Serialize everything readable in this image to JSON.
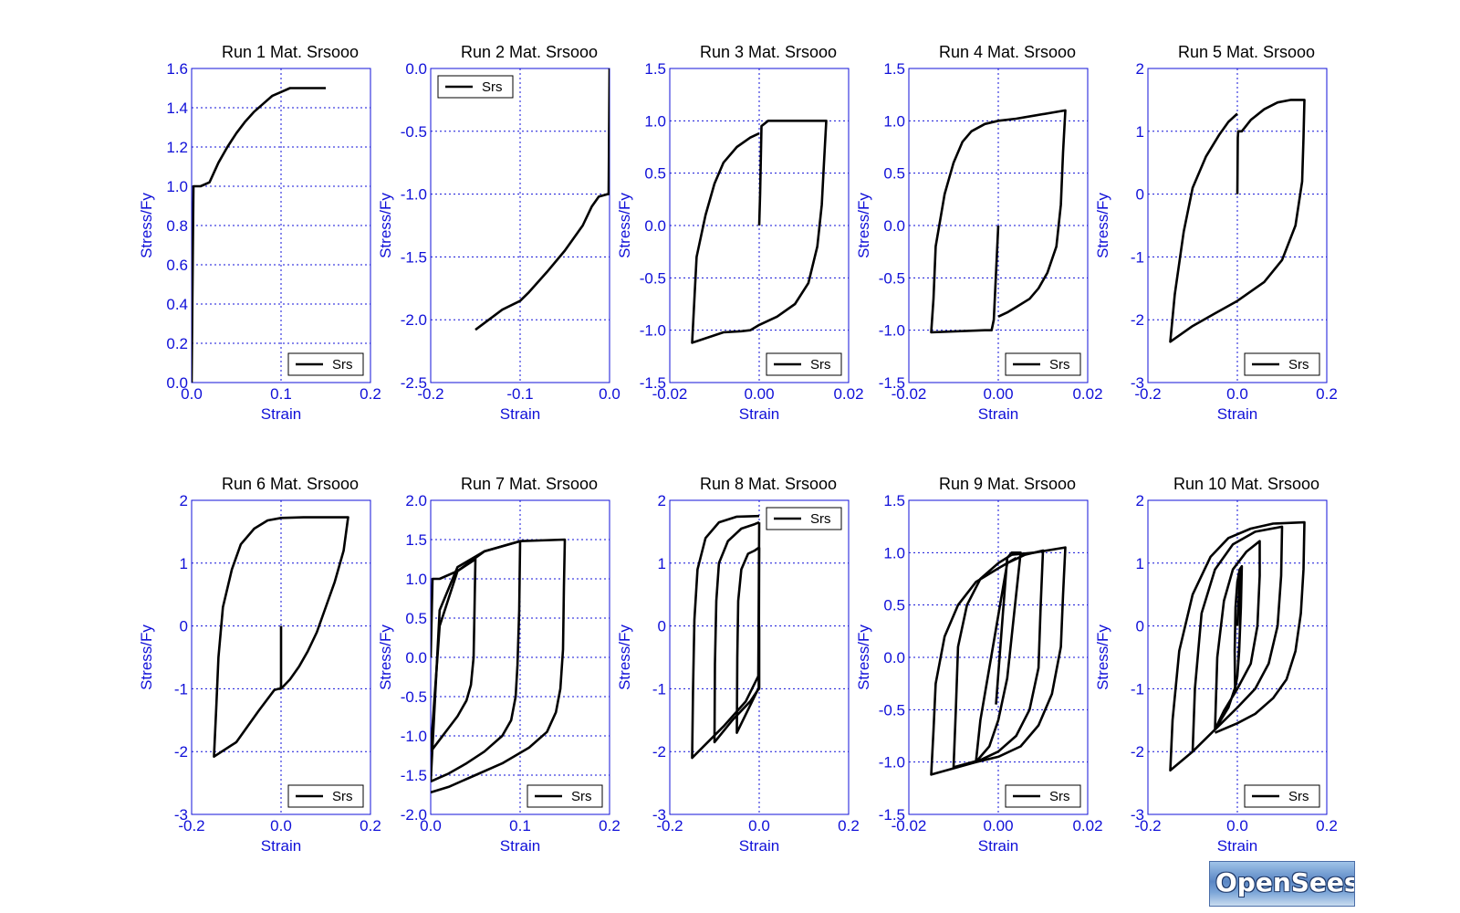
{
  "brand": "OpenSees",
  "colors": {
    "axis": "#1010d8",
    "grid": "#1010d8",
    "curve": "#000000",
    "text": "#000000"
  },
  "chart_data": [
    {
      "type": "line",
      "title": "Run 1   Mat. Srsooo",
      "xlabel": "Strain",
      "ylabel": "Stress/Fy",
      "xlim": [
        0,
        0.2
      ],
      "ylim": [
        0,
        1.6
      ],
      "xticks": [
        "0.0",
        "0.1",
        "0.2"
      ],
      "yticks": [
        "0.0",
        "0.2",
        "0.4",
        "0.6",
        "0.8",
        "1.0",
        "1.2",
        "1.4",
        "1.6"
      ],
      "grid": true,
      "legend": "Srs",
      "legend_position": "bottom-right",
      "x": [
        0,
        0.002,
        0.003,
        0.01,
        0.02,
        0.03,
        0.04,
        0.05,
        0.06,
        0.07,
        0.08,
        0.09,
        0.1,
        0.11,
        0.12,
        0.15
      ],
      "y": [
        0,
        1.0,
        1.0,
        1.0,
        1.02,
        1.12,
        1.2,
        1.27,
        1.33,
        1.38,
        1.42,
        1.46,
        1.48,
        1.5,
        1.5,
        1.5
      ]
    },
    {
      "type": "line",
      "title": "Run 2   Mat. Srsooo",
      "xlabel": "Strain",
      "ylabel": "Stress/Fy",
      "xlim": [
        -0.2,
        0
      ],
      "ylim": [
        -2.5,
        0
      ],
      "xticks": [
        "-0.2",
        "-0.1",
        "0.0"
      ],
      "yticks": [
        "-2.5",
        "-2.0",
        "-1.5",
        "-1.0",
        "-0.5",
        "0.0"
      ],
      "grid": true,
      "legend": "Srs",
      "legend_position": "top-left",
      "x": [
        0,
        -0.001,
        -0.002,
        -0.012,
        -0.02,
        -0.03,
        -0.05,
        -0.07,
        -0.09,
        -0.1,
        -0.12,
        -0.15
      ],
      "y": [
        0,
        -1.0,
        -1.0,
        -1.02,
        -1.1,
        -1.25,
        -1.45,
        -1.62,
        -1.78,
        -1.85,
        -1.92,
        -2.08
      ]
    },
    {
      "type": "line",
      "title": "Run 3   Mat. Srsooo",
      "xlabel": "Strain",
      "ylabel": "Stress/Fy",
      "xlim": [
        -0.02,
        0.02
      ],
      "ylim": [
        -1.5,
        1.5
      ],
      "xticks": [
        "-0.02",
        "0.00",
        "0.02"
      ],
      "yticks": [
        "-1.5",
        "-1.0",
        "-0.5",
        "0.0",
        "0.5",
        "1.0",
        "1.5"
      ],
      "grid": true,
      "legend": "Srs",
      "legend_position": "bottom-right",
      "x": [
        0,
        0.0002,
        0.0005,
        0.002,
        0.004,
        0.01,
        0.015,
        0.0145,
        0.014,
        0.013,
        0.011,
        0.008,
        0.004,
        0,
        -0.002,
        -0.004,
        -0.008,
        -0.015,
        -0.0145,
        -0.014,
        -0.012,
        -0.01,
        -0.008,
        -0.005,
        -0.002,
        0
      ],
      "y": [
        0,
        0.3,
        0.95,
        1.0,
        1.0,
        1.0,
        1.0,
        0.6,
        0.2,
        -0.2,
        -0.55,
        -0.75,
        -0.87,
        -0.95,
        -1.0,
        -1.01,
        -1.02,
        -1.12,
        -0.7,
        -0.3,
        0.1,
        0.4,
        0.6,
        0.75,
        0.84,
        0.88
      ]
    },
    {
      "type": "line",
      "title": "Run 4   Mat. Srsooo",
      "xlabel": "Strain",
      "ylabel": "Stress/Fy",
      "xlim": [
        -0.02,
        0.02
      ],
      "ylim": [
        -1.5,
        1.5
      ],
      "xticks": [
        "-0.02",
        "0.00",
        "0.02"
      ],
      "yticks": [
        "-1.5",
        "-1.0",
        "-0.5",
        "0.0",
        "0.5",
        "1.0",
        "1.5"
      ],
      "grid": true,
      "legend": "Srs",
      "legend_position": "bottom-right",
      "x": [
        0,
        -0.001,
        -0.0015,
        -0.003,
        -0.015,
        -0.0145,
        -0.014,
        -0.012,
        -0.01,
        -0.008,
        -0.006,
        -0.003,
        0,
        0.004,
        0.015,
        0.0145,
        0.014,
        0.013,
        0.011,
        0.009,
        0.007,
        0.004,
        0.002,
        0
      ],
      "y": [
        0,
        -0.9,
        -1.0,
        -1.0,
        -1.02,
        -0.7,
        -0.2,
        0.3,
        0.6,
        0.8,
        0.9,
        0.97,
        1.0,
        1.02,
        1.1,
        0.7,
        0.2,
        -0.2,
        -0.45,
        -0.6,
        -0.7,
        -0.78,
        -0.83,
        -0.87
      ]
    },
    {
      "type": "line",
      "title": "Run 5   Mat. Srsooo",
      "xlabel": "Strain",
      "ylabel": "Stress/Fy",
      "xlim": [
        -0.2,
        0.2
      ],
      "ylim": [
        -3,
        2
      ],
      "xticks": [
        "-0.2",
        "0.0",
        "0.2"
      ],
      "yticks": [
        "-3",
        "-2",
        "-1",
        "0",
        "1",
        "2"
      ],
      "grid": true,
      "legend": "Srs",
      "legend_position": "bottom-right",
      "x": [
        0,
        0.001,
        0.002,
        0.01,
        0.03,
        0.06,
        0.09,
        0.12,
        0.15,
        0.148,
        0.145,
        0.13,
        0.1,
        0.06,
        0.02,
        0,
        -0.05,
        -0.1,
        -0.15,
        -0.14,
        -0.12,
        -0.1,
        -0.07,
        -0.04,
        -0.02,
        0
      ],
      "y": [
        0,
        0.9,
        1.0,
        1.0,
        1.18,
        1.35,
        1.46,
        1.5,
        1.5,
        0.9,
        0.2,
        -0.5,
        -1.05,
        -1.4,
        -1.6,
        -1.7,
        -1.9,
        -2.1,
        -2.35,
        -1.6,
        -0.6,
        0.1,
        0.6,
        0.95,
        1.15,
        1.28
      ]
    },
    {
      "type": "line",
      "title": "Run 6   Mat. Srsooo",
      "xlabel": "Strain",
      "ylabel": "Stress/Fy",
      "xlim": [
        -0.2,
        0.2
      ],
      "ylim": [
        -3,
        2
      ],
      "xticks": [
        "-0.2",
        "0.0",
        "0.2"
      ],
      "yticks": [
        "-3",
        "-2",
        "-1",
        "0",
        "1",
        "2"
      ],
      "grid": true,
      "legend": "Srs",
      "legend_position": "bottom-right",
      "x": [
        0,
        0,
        -0.001,
        -0.005,
        -0.015,
        -0.05,
        -0.1,
        -0.15,
        -0.145,
        -0.14,
        -0.13,
        -0.11,
        -0.09,
        -0.06,
        -0.03,
        0,
        0.05,
        0.1,
        0.15,
        0.14,
        0.12,
        0.1,
        0.08,
        0.06,
        0.04,
        0.02,
        0
      ],
      "y": [
        0,
        -0.95,
        -1.0,
        -1.0,
        -1.02,
        -1.35,
        -1.85,
        -2.08,
        -1.3,
        -0.5,
        0.3,
        0.9,
        1.3,
        1.55,
        1.68,
        1.72,
        1.73,
        1.73,
        1.73,
        1.2,
        0.7,
        0.3,
        -0.1,
        -0.4,
        -0.65,
        -0.85,
        -1.0
      ]
    },
    {
      "type": "line",
      "title": "Run 7   Mat. Srsooo",
      "xlabel": "Strain",
      "ylabel": "Stress/Fy",
      "xlim": [
        0,
        0.2
      ],
      "ylim": [
        -2,
        2
      ],
      "xticks": [
        "0.0",
        "0.1",
        "0.2"
      ],
      "yticks": [
        "-2.0",
        "-1.5",
        "-1.0",
        "-0.5",
        "0.0",
        "0.5",
        "1.0",
        "1.5",
        "2.0"
      ],
      "grid": true,
      "legend": "Srs",
      "legend_position": "bottom-right",
      "series": [
        {
          "x": [
            0,
            0.002,
            0.01,
            0.03,
            0.05,
            0.049,
            0.048,
            0.045,
            0.04,
            0.03,
            0.02,
            0.01,
            0
          ],
          "y": [
            0,
            1.0,
            1.0,
            1.1,
            1.25,
            0.6,
            0.0,
            -0.35,
            -0.55,
            -0.75,
            -0.9,
            -1.05,
            -1.2
          ]
        },
        {
          "x": [
            0,
            0.01,
            0.03,
            0.06,
            0.1,
            0.099,
            0.097,
            0.095,
            0.09,
            0.08,
            0.06,
            0.04,
            0.02,
            0
          ],
          "y": [
            -1.2,
            0.4,
            1.1,
            1.35,
            1.48,
            0.6,
            -0.1,
            -0.5,
            -0.8,
            -1.0,
            -1.2,
            -1.35,
            -1.48,
            -1.58
          ]
        },
        {
          "x": [
            0,
            0.01,
            0.03,
            0.06,
            0.1,
            0.15,
            0.149,
            0.148,
            0.145,
            0.14,
            0.13,
            0.11,
            0.08,
            0.05,
            0.02,
            0
          ],
          "y": [
            -1.58,
            0.6,
            1.15,
            1.35,
            1.48,
            1.5,
            0.9,
            0.1,
            -0.4,
            -0.7,
            -0.95,
            -1.15,
            -1.35,
            -1.5,
            -1.65,
            -1.72
          ]
        }
      ]
    },
    {
      "type": "line",
      "title": "Run 8   Mat. Srsooo",
      "xlabel": "Strain",
      "ylabel": "Stress/Fy",
      "xlim": [
        -0.2,
        0.2
      ],
      "ylim": [
        -3,
        2
      ],
      "xticks": [
        "-0.2",
        "0.0",
        "0.2"
      ],
      "yticks": [
        "-3",
        "-2",
        "-1",
        "0",
        "1",
        "2"
      ],
      "grid": true,
      "legend": "Srs",
      "legend_position": "top-right",
      "series": [
        {
          "x": [
            0,
            0,
            -0.002,
            -0.05,
            -0.049,
            -0.047,
            -0.04,
            -0.025,
            -0.01,
            0
          ],
          "y": [
            0,
            -1.0,
            -1.0,
            -1.7,
            -0.5,
            0.4,
            0.9,
            1.15,
            1.2,
            1.25
          ]
        },
        {
          "x": [
            0,
            -0.001,
            -0.02,
            -0.06,
            -0.1,
            -0.099,
            -0.096,
            -0.09,
            -0.07,
            -0.04,
            -0.01,
            0
          ],
          "y": [
            1.25,
            -1.0,
            -1.2,
            -1.5,
            -1.85,
            -0.6,
            0.4,
            1.0,
            1.35,
            1.55,
            1.62,
            1.65
          ]
        },
        {
          "x": [
            0,
            -0.002,
            -0.03,
            -0.08,
            -0.15,
            -0.148,
            -0.145,
            -0.138,
            -0.12,
            -0.09,
            -0.05,
            0
          ],
          "y": [
            1.65,
            -0.8,
            -1.2,
            -1.6,
            -2.1,
            -1.0,
            0.1,
            0.9,
            1.4,
            1.65,
            1.74,
            1.75
          ]
        }
      ]
    },
    {
      "type": "line",
      "title": "Run 9   Mat. Srsooo",
      "xlabel": "Strain",
      "ylabel": "Stress/Fy",
      "xlim": [
        -0.02,
        0.02
      ],
      "ylim": [
        -1.5,
        1.5
      ],
      "xticks": [
        "-0.02",
        "0.00",
        "0.02"
      ],
      "yticks": [
        "-1.5",
        "-1.0",
        "-0.5",
        "0.0",
        "0.5",
        "1.0",
        "1.5"
      ],
      "grid": true,
      "legend": "Srs",
      "legend_position": "bottom-right",
      "series": [
        {
          "x": [
            -0.0005,
            0.001,
            0.002,
            0.003,
            0.005,
            0.004,
            0.003,
            0.002,
            0,
            -0.002,
            -0.004,
            -0.005,
            -0.004,
            -0.002,
            0,
            0.002
          ],
          "y": [
            -0.45,
            0.4,
            0.95,
            1.0,
            1.0,
            0.6,
            0.2,
            -0.2,
            -0.6,
            -0.85,
            -0.95,
            -1.0,
            -0.6,
            -0.1,
            0.4,
            0.9
          ]
        },
        {
          "x": [
            0.002,
            0.006,
            0.01,
            0.0095,
            0.009,
            0.007,
            0.004,
            0,
            -0.004,
            -0.01,
            -0.0095,
            -0.009,
            -0.007,
            -0.004,
            0,
            0.003
          ],
          "y": [
            0.9,
            0.98,
            1.02,
            0.5,
            -0.1,
            -0.5,
            -0.75,
            -0.9,
            -0.98,
            -1.05,
            -0.5,
            0.1,
            0.5,
            0.75,
            0.9,
            0.98
          ]
        },
        {
          "x": [
            0.003,
            0.008,
            0.015,
            0.0145,
            0.014,
            0.012,
            0.009,
            0.005,
            0,
            -0.005,
            -0.015,
            -0.0145,
            -0.014,
            -0.012,
            -0.009,
            -0.005,
            0,
            0.004
          ],
          "y": [
            0.98,
            1.0,
            1.05,
            0.6,
            0.1,
            -0.35,
            -0.65,
            -0.85,
            -0.95,
            -1.0,
            -1.12,
            -0.7,
            -0.25,
            0.2,
            0.5,
            0.72,
            0.85,
            0.95
          ]
        }
      ]
    },
    {
      "type": "line",
      "title": "Run 10   Mat. Srsooo",
      "xlabel": "Strain",
      "ylabel": "Stress/Fy",
      "xlim": [
        -0.2,
        0.2
      ],
      "ylim": [
        -3,
        2
      ],
      "xticks": [
        "-0.2",
        "0.0",
        "0.2"
      ],
      "yticks": [
        "-3",
        "-2",
        "-1",
        "0",
        "1",
        "2"
      ],
      "grid": true,
      "legend": "Srs",
      "legend_position": "bottom-right",
      "series": [
        {
          "x": [
            0,
            0.005,
            0.01,
            0.008,
            0.005,
            0,
            -0.005,
            -0.006,
            -0.004,
            0,
            0.005,
            0.01,
            0.008,
            0.004,
            0,
            -0.004,
            -0.006
          ],
          "y": [
            0,
            0.7,
            0.95,
            0.5,
            -0.2,
            -0.8,
            -1.0,
            -0.4,
            0.3,
            0.7,
            0.9,
            0.95,
            0.3,
            -0.4,
            -0.8,
            -0.95,
            -1.0
          ]
        },
        {
          "x": [
            -0.006,
            -0.02,
            -0.05,
            -0.045,
            -0.03,
            -0.01,
            0.02,
            0.05,
            0.05,
            0.045,
            0.03,
            0.0,
            -0.03,
            -0.05
          ],
          "y": [
            -1.0,
            -1.3,
            -1.65,
            -0.5,
            0.4,
            0.9,
            1.18,
            1.35,
            0.8,
            0.0,
            -0.6,
            -1.0,
            -1.35,
            -1.65
          ]
        },
        {
          "x": [
            -0.05,
            -0.1,
            -0.095,
            -0.08,
            -0.05,
            -0.01,
            0.04,
            0.1,
            0.098,
            0.09,
            0.07,
            0.04,
            0,
            -0.05,
            -0.1
          ],
          "y": [
            -1.65,
            -2.0,
            -1.0,
            0.2,
            0.9,
            1.3,
            1.5,
            1.58,
            0.8,
            0.0,
            -0.6,
            -1.0,
            -1.3,
            -1.65,
            -2.0
          ]
        },
        {
          "x": [
            -0.1,
            -0.15,
            -0.145,
            -0.13,
            -0.1,
            -0.06,
            -0.02,
            0.03,
            0.08,
            0.15,
            0.148,
            0.142,
            0.13,
            0.11,
            0.08,
            0.04,
            0,
            -0.05
          ],
          "y": [
            -2.0,
            -2.3,
            -1.5,
            -0.4,
            0.5,
            1.1,
            1.4,
            1.55,
            1.63,
            1.65,
            0.9,
            0.2,
            -0.4,
            -0.85,
            -1.15,
            -1.4,
            -1.55,
            -1.7
          ]
        }
      ]
    }
  ]
}
